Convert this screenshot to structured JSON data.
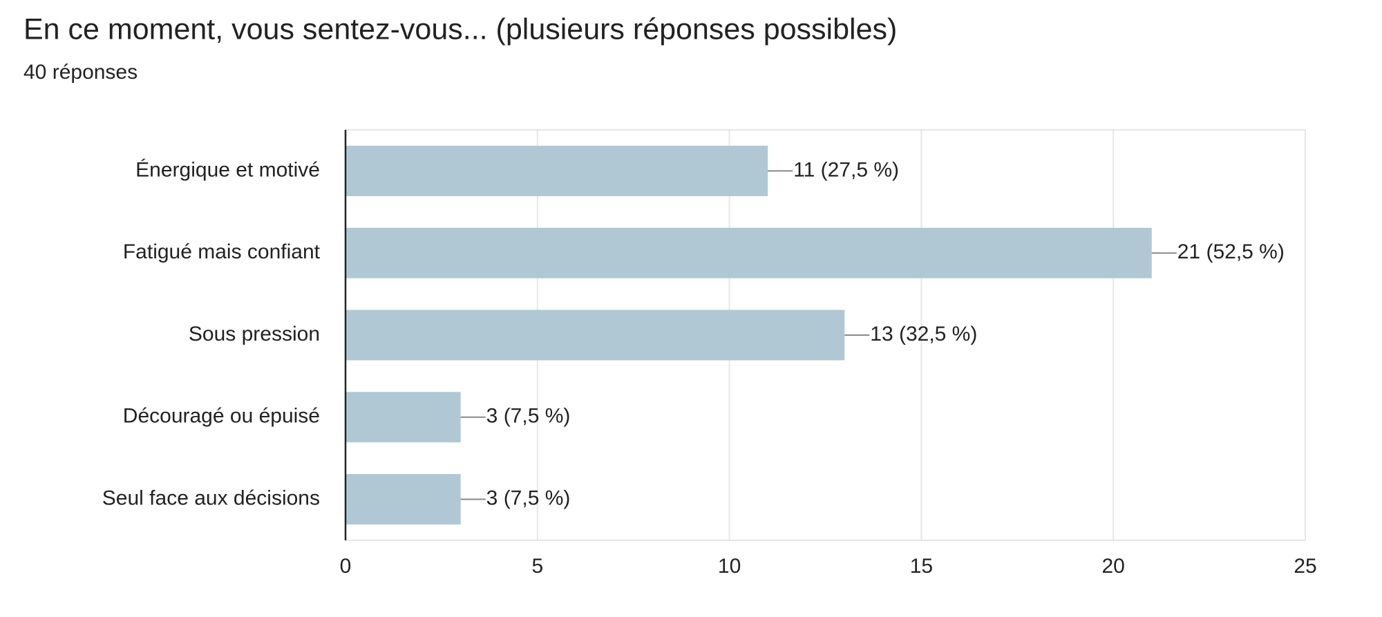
{
  "chart_data": {
    "type": "bar",
    "orientation": "horizontal",
    "title": "En ce moment, vous sentez-vous... (plusieurs réponses possibles)",
    "subtitle": "40 réponses",
    "categories": [
      "Énergique et motivé",
      "Fatigué mais confiant",
      "Sous pression",
      "Découragé ou épuisé",
      "Seul face aux décisions"
    ],
    "values": [
      11,
      21,
      13,
      3,
      3
    ],
    "value_labels": [
      "11 (27,5 %)",
      "21 (52,5 %)",
      "13 (32,5 %)",
      "3 (7,5 %)",
      "3 (7,5 %)"
    ],
    "color": "#b0c8d4",
    "xlim": [
      0,
      25
    ],
    "xticks": [
      0,
      5,
      10,
      15,
      20,
      25
    ],
    "grid": true
  }
}
